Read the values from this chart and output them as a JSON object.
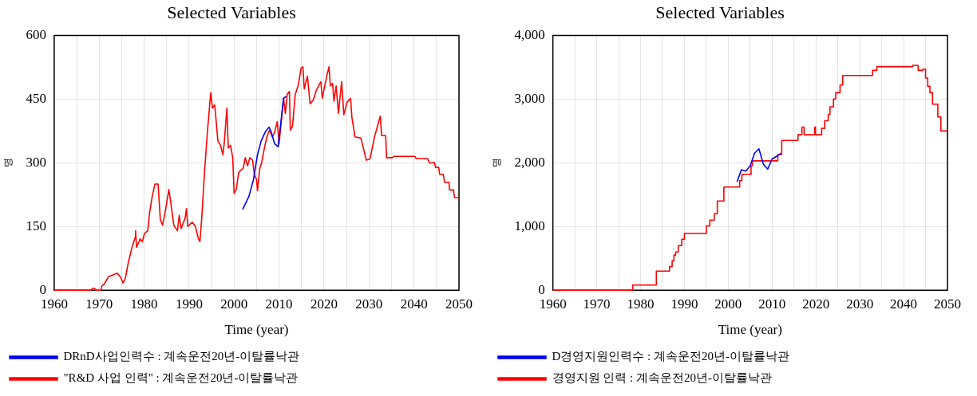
{
  "chart_data": [
    {
      "type": "line",
      "title": "Selected Variables",
      "xlabel": "Time (year)",
      "ylabel": "명",
      "xlim": [
        1960,
        2050
      ],
      "ylim": [
        0,
        600
      ],
      "xticks": [
        1960,
        {
          "value": 1965,
          "label": null
        },
        1970,
        {
          "value": 1975,
          "label": null
        },
        1980,
        {
          "value": 1985,
          "label": null
        },
        1990,
        {
          "value": 1995,
          "label": null
        },
        2000,
        {
          "value": 2005,
          "label": null
        },
        2010,
        {
          "value": 2015,
          "label": null
        },
        2020,
        {
          "value": 2025,
          "label": null
        },
        2030,
        {
          "value": 2035,
          "label": null
        },
        2040,
        {
          "value": 2045,
          "label": null
        },
        2050
      ],
      "yticks": [
        0,
        150,
        300,
        450,
        600
      ],
      "grid": true,
      "legend": "bottom",
      "line_style": "solid",
      "marker": "none",
      "series": [
        {
          "name": "DRnD사업인력수 : 계속운전20년-이탈률낙관",
          "color": "#0000ff",
          "type": "line",
          "x": [
            2001.9,
            2003.3,
            2004.3,
            2005.2,
            2006,
            2007,
            2007.8,
            2008.3,
            2009,
            2009.8,
            2011,
            2011.6
          ],
          "values": [
            190,
            221,
            260,
            319,
            351,
            374,
            384,
            371,
            345,
            338,
            452,
            456
          ]
        },
        {
          "name": "\"R&D 사업 인력\" : 계속운전20년-이탈률낙관",
          "color": "#ff0000",
          "type": "line",
          "x": [
            1960,
            1968.2,
            1968.5,
            1969,
            1969.2,
            1970.4,
            1970.6,
            1971.1,
            1972.1,
            1973.1,
            1974,
            1974.8,
            1975.3,
            1975.8,
            1976.5,
            1977.3,
            1978,
            1978.1,
            1978.3,
            1979.1,
            1979.6,
            1980.1,
            1980.8,
            1981.2,
            1981.8,
            1982.4,
            1983.1,
            1983.6,
            1984.1,
            1984.8,
            1985.5,
            1985.9,
            1986.6,
            1987.4,
            1987.8,
            1988.2,
            1989.1,
            1989.4,
            1989.7,
            1990.7,
            1991.4,
            1992,
            1992.4,
            1992.8,
            1993.4,
            1994,
            1994.8,
            1995.2,
            1995.7,
            1996.4,
            1997,
            1997.5,
            1997.8,
            1998.4,
            1998.7,
            1999.2,
            1999.7,
            2000,
            2000.5,
            2001,
            2001.5,
            2002,
            2002.5,
            2003,
            2003.5,
            2004.1,
            2004.5,
            2005,
            2005.2,
            2005.7,
            2006.1,
            2006.8,
            2007.3,
            2007.9,
            2008.5,
            2009,
            2009.6,
            2010,
            2010.6,
            2011,
            2011.4,
            2011.8,
            2012.3,
            2012.5,
            2013,
            2013.6,
            2014.3,
            2014.9,
            2015.3,
            2015.6,
            2016.3,
            2016.9,
            2017.6,
            2018.3,
            2019.3,
            2019.6,
            2020.6,
            2021.1,
            2021.4,
            2021.9,
            2022.2,
            2022.7,
            2023.2,
            2023.9,
            2024.4,
            2025.1,
            2025.9,
            2026.2,
            2026.9,
            2028.2,
            2028.9,
            2029.4,
            2030.2,
            2031.3,
            2032.5,
            2032.8,
            2033.7,
            2033.9,
            2035.2,
            2035.5,
            2040.2,
            2040.5,
            2043,
            2043.5,
            2044.5,
            2044.8,
            2045.5,
            2045.7,
            2046.5,
            2046.8,
            2047.8,
            2047.9,
            2048.8,
            2049,
            2050
          ],
          "values": [
            0,
            0,
            4,
            4,
            0,
            0,
            10,
            14,
            32,
            36,
            40,
            30,
            17,
            27,
            66,
            101,
            124,
            140,
            101,
            121,
            114,
            134,
            140,
            182,
            221,
            250,
            250,
            166,
            153,
            192,
            237,
            208,
            153,
            140,
            176,
            145,
            169,
            192,
            150,
            160,
            150,
            124,
            114,
            169,
            273,
            364,
            465,
            429,
            436,
            351,
            341,
            319,
            345,
            429,
            335,
            341,
            312,
            228,
            238,
            276,
            283,
            286,
            312,
            293,
            312,
            306,
            273,
            260,
            234,
            286,
            299,
            338,
            361,
            377,
            361,
            371,
            397,
            345,
            410,
            452,
            416,
            461,
            468,
            377,
            387,
            461,
            484,
            523,
            526,
            474,
            504,
            439,
            448,
            471,
            491,
            452,
            504,
            526,
            481,
            487,
            445,
            481,
            416,
            491,
            413,
            442,
            452,
            406,
            361,
            358,
            328,
            306,
            309,
            364,
            410,
            364,
            364,
            312,
            312,
            315,
            315,
            310,
            310,
            299,
            301,
            289,
            289,
            273,
            273,
            254,
            254,
            236,
            236,
            218,
            218
          ]
        }
      ]
    },
    {
      "type": "line",
      "title": "Selected Variables",
      "xlabel": "Time (year)",
      "ylabel": "명",
      "xlim": [
        1960,
        2050
      ],
      "ylim": [
        0,
        4000
      ],
      "xticks": [
        1960,
        {
          "value": 1965,
          "label": null
        },
        1970,
        {
          "value": 1975,
          "label": null
        },
        1980,
        {
          "value": 1985,
          "label": null
        },
        1990,
        {
          "value": 1995,
          "label": null
        },
        2000,
        {
          "value": 2005,
          "label": null
        },
        2010,
        {
          "value": 2015,
          "label": null
        },
        2020,
        {
          "value": 2025,
          "label": null
        },
        2030,
        {
          "value": 2035,
          "label": null
        },
        2040,
        {
          "value": 2045,
          "label": null
        },
        2050
      ],
      "yticks": [
        0,
        {
          "value": 1000,
          "label": "1,000"
        },
        {
          "value": 2000,
          "label": "2,000"
        },
        {
          "value": 3000,
          "label": "3,000"
        },
        {
          "value": 4000,
          "label": "4,000"
        }
      ],
      "grid": true,
      "legend": "bottom",
      "line_style": "solid",
      "marker": "none",
      "series": [
        {
          "name": "D경영지원인력수 : 계속운전20년-이탈률낙관",
          "color": "#0000ff",
          "type": "line",
          "x": [
            2002,
            2003,
            2004,
            2005,
            2006,
            2007,
            2008,
            2009,
            2010,
            2011,
            2012
          ],
          "values": [
            1700,
            1890,
            1870,
            1950,
            2150,
            2220,
            1980,
            1900,
            2060,
            2100,
            2150
          ]
        },
        {
          "name": "경영지원 인력 : 계속운전20년-이탈률낙관",
          "color": "#ff0000",
          "type": "step",
          "x": [
            1960,
            1978.2,
            1983.6,
            1986.6,
            1987.2,
            1987.6,
            1988,
            1988.6,
            1989.4,
            1990,
            1995,
            1995.8,
            1996.8,
            1997.5,
            1999,
            2002.6,
            2003.1,
            2005.2,
            2005.5,
            2011.3,
            2012.2,
            2015.9,
            2016.8,
            2017.3,
            2019.7,
            2019.9,
            2021.3,
            2022,
            2022.8,
            2023.2,
            2024,
            2024.5,
            2025.5,
            2026.1,
            2032.9,
            2033.9,
            2042.1,
            2043.3,
            2044.4,
            2045,
            2045.5,
            2046,
            2046.6,
            2047.8,
            2048.5,
            2050
          ],
          "values": [
            0,
            80,
            300,
            370,
            460,
            550,
            600,
            700,
            800,
            890,
            1010,
            1100,
            1200,
            1400,
            1620,
            1720,
            1820,
            1950,
            2030,
            2130,
            2350,
            2440,
            2560,
            2440,
            2560,
            2440,
            2540,
            2660,
            2760,
            2880,
            3000,
            3100,
            3220,
            3370,
            3450,
            3510,
            3530,
            3450,
            3470,
            3330,
            3200,
            3100,
            2920,
            2720,
            2500,
            2500
          ]
        }
      ]
    }
  ]
}
